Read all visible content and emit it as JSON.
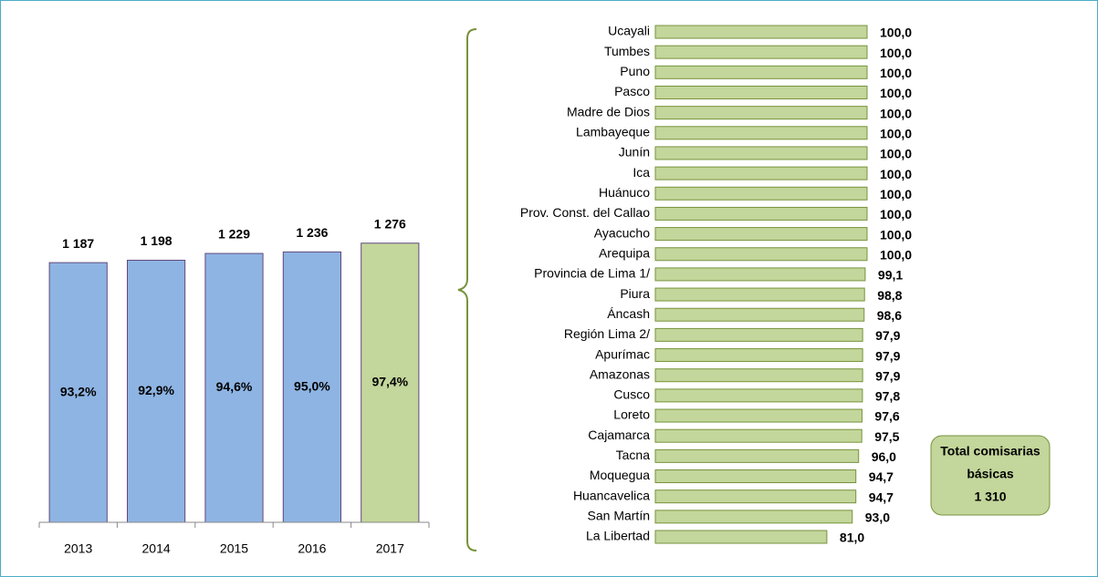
{
  "chart_data": [
    {
      "type": "bar",
      "categories": [
        "2013",
        "2014",
        "2015",
        "2016",
        "2017"
      ],
      "values": [
        1187,
        1198,
        1229,
        1236,
        1276
      ],
      "value_labels": [
        "1 187",
        "1 198",
        "1 229",
        "1 236",
        "1 276"
      ],
      "inner_values": [
        93.2,
        92.9,
        94.6,
        95.0,
        97.4
      ],
      "inner_value_labels": [
        "93,2%",
        "92,9%",
        "94,6%",
        "95,0%",
        "97,4%"
      ],
      "colors": [
        "#8eb4e3",
        "#8eb4e3",
        "#8eb4e3",
        "#8eb4e3",
        "#c3d69b"
      ],
      "ylim": [
        0,
        1500
      ]
    },
    {
      "type": "hbar",
      "categories": [
        "Ucayali",
        "Tumbes",
        "Puno",
        "Pasco",
        "Madre de Dios",
        "Lambayeque",
        "Junín",
        "Ica",
        "Huánuco",
        "Prov. Const. del Callao",
        "Ayacucho",
        "Arequipa",
        "Provincia de Lima 1/",
        "Piura",
        "Áncash",
        "Región Lima 2/",
        "Apurímac",
        "Amazonas",
        "Cusco",
        "Loreto",
        "Cajamarca",
        "Tacna",
        "Moquegua",
        "Huancavelica",
        "San Martín",
        "La Libertad"
      ],
      "values": [
        100.0,
        100.0,
        100.0,
        100.0,
        100.0,
        100.0,
        100.0,
        100.0,
        100.0,
        100.0,
        100.0,
        100.0,
        99.1,
        98.8,
        98.6,
        97.9,
        97.9,
        97.9,
        97.8,
        97.6,
        97.5,
        96.0,
        94.7,
        94.7,
        93.0,
        81.0
      ],
      "value_labels": [
        "100,0",
        "100,0",
        "100,0",
        "100,0",
        "100,0",
        "100,0",
        "100,0",
        "100,0",
        "100,0",
        "100,0",
        "100,0",
        "100,0",
        "99,1",
        "98,8",
        "98,6",
        "97,9",
        "97,9",
        "97,9",
        "97,8",
        "97,6",
        "97,5",
        "96,0",
        "94,7",
        "94,7",
        "93,0",
        "81,0"
      ],
      "color": "#c3d69b",
      "xlim": [
        0,
        100
      ]
    }
  ],
  "annotation": {
    "lines": [
      "Total comisarias",
      "básicas",
      "1 310"
    ]
  }
}
